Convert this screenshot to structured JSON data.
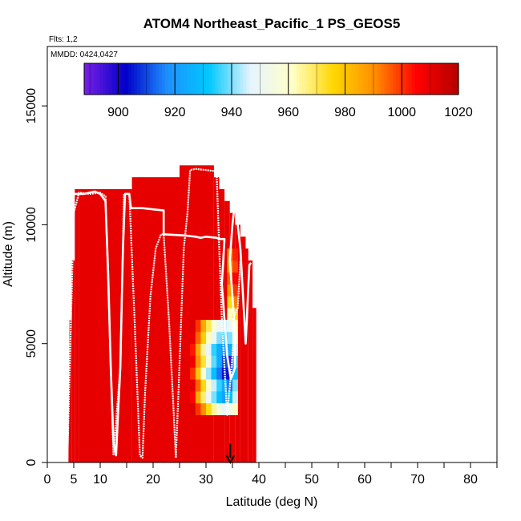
{
  "chart_data": {
    "type": "heatmap",
    "title": "ATOM4 Northeast_Pacific_1 PS_GEOS5",
    "flights_label": "Flts: 1,2",
    "dates_label": "MMDD: 0424,0427",
    "xlabel": "Latitude (deg N)",
    "ylabel": "Altitude (m)",
    "xlim": [
      0,
      85
    ],
    "ylim": [
      0,
      17500
    ],
    "x_ticks": [
      0,
      5,
      10,
      20,
      30,
      40,
      50,
      60,
      70,
      80
    ],
    "y_ticks": [
      0,
      5000,
      10000,
      15000
    ],
    "colorbar": {
      "min": 888,
      "max": 1020,
      "ticks": [
        900,
        920,
        940,
        960,
        980,
        1000,
        1020
      ],
      "colors": [
        "#7a1fe6",
        "#0000c8",
        "#1e90ff",
        "#00c8ff",
        "#e6f4ff",
        "#ffffc8",
        "#ffd700",
        "#ff8c00",
        "#ff0000",
        "#b40000"
      ]
    },
    "background_value": 1010,
    "columns": [
      {
        "x0": 3.8,
        "x1": 4.6,
        "top": 6000
      },
      {
        "x0": 4.6,
        "x1": 5.2,
        "top": 8500
      },
      {
        "x0": 5.2,
        "x1": 6.0,
        "top": 11500
      },
      {
        "x0": 6.0,
        "x1": 16.0,
        "top": 11500
      },
      {
        "x0": 16.0,
        "x1": 25.0,
        "top": 12000
      },
      {
        "x0": 25.0,
        "x1": 31.5,
        "top": 12500
      },
      {
        "x0": 31.5,
        "x1": 32.5,
        "top": 12000
      },
      {
        "x0": 32.5,
        "x1": 33.5,
        "top": 11500
      },
      {
        "x0": 33.5,
        "x1": 34.5,
        "top": 11000
      },
      {
        "x0": 34.5,
        "x1": 35.5,
        "top": 10500
      },
      {
        "x0": 35.5,
        "x1": 36.5,
        "top": 10000
      },
      {
        "x0": 36.5,
        "x1": 37.5,
        "top": 9500
      },
      {
        "x0": 37.5,
        "x1": 38.0,
        "top": 9000
      },
      {
        "x0": 38.0,
        "x1": 38.8,
        "top": 8500
      },
      {
        "x0": 38.8,
        "x1": 39.5,
        "top": 6500
      }
    ],
    "anomaly_cells": [
      {
        "x": 27.5,
        "z": 2250,
        "v": 1012
      },
      {
        "x": 28.5,
        "z": 2250,
        "v": 1000
      },
      {
        "x": 29.5,
        "z": 2250,
        "v": 990
      },
      {
        "x": 30.5,
        "z": 2250,
        "v": 975
      },
      {
        "x": 31.5,
        "z": 2250,
        "v": 965
      },
      {
        "x": 32.5,
        "z": 2250,
        "v": 955
      },
      {
        "x": 33.5,
        "z": 2250,
        "v": 948
      },
      {
        "x": 34.5,
        "z": 2250,
        "v": 952
      },
      {
        "x": 35.5,
        "z": 2250,
        "v": 962
      },
      {
        "x": 27.5,
        "z": 2750,
        "v": 1005
      },
      {
        "x": 28.5,
        "z": 2750,
        "v": 985
      },
      {
        "x": 29.5,
        "z": 2750,
        "v": 968
      },
      {
        "x": 30.5,
        "z": 2750,
        "v": 950
      },
      {
        "x": 31.5,
        "z": 2750,
        "v": 940
      },
      {
        "x": 32.5,
        "z": 2750,
        "v": 930
      },
      {
        "x": 33.5,
        "z": 2750,
        "v": 922
      },
      {
        "x": 34.5,
        "z": 2750,
        "v": 930
      },
      {
        "x": 35.5,
        "z": 2750,
        "v": 945
      },
      {
        "x": 27.5,
        "z": 3250,
        "v": 1010
      },
      {
        "x": 28.5,
        "z": 3250,
        "v": 995
      },
      {
        "x": 29.5,
        "z": 3250,
        "v": 975
      },
      {
        "x": 30.5,
        "z": 3250,
        "v": 960
      },
      {
        "x": 31.5,
        "z": 3250,
        "v": 945
      },
      {
        "x": 32.5,
        "z": 3250,
        "v": 935
      },
      {
        "x": 33.5,
        "z": 3250,
        "v": 925
      },
      {
        "x": 34.5,
        "z": 3250,
        "v": 915
      },
      {
        "x": 35.5,
        "z": 3250,
        "v": 940
      },
      {
        "x": 27.5,
        "z": 3750,
        "v": 1000
      },
      {
        "x": 28.5,
        "z": 3750,
        "v": 980
      },
      {
        "x": 29.5,
        "z": 3750,
        "v": 960
      },
      {
        "x": 30.5,
        "z": 3750,
        "v": 942
      },
      {
        "x": 31.5,
        "z": 3750,
        "v": 930
      },
      {
        "x": 32.5,
        "z": 3750,
        "v": 915
      },
      {
        "x": 33.5,
        "z": 3750,
        "v": 905
      },
      {
        "x": 34.5,
        "z": 3750,
        "v": 900
      },
      {
        "x": 35.5,
        "z": 3750,
        "v": 930
      },
      {
        "x": 27.5,
        "z": 4250,
        "v": 1008
      },
      {
        "x": 28.5,
        "z": 4250,
        "v": 990
      },
      {
        "x": 29.5,
        "z": 4250,
        "v": 972
      },
      {
        "x": 30.5,
        "z": 4250,
        "v": 955
      },
      {
        "x": 31.5,
        "z": 4250,
        "v": 938
      },
      {
        "x": 32.5,
        "z": 4250,
        "v": 925
      },
      {
        "x": 33.5,
        "z": 4250,
        "v": 910
      },
      {
        "x": 34.5,
        "z": 4250,
        "v": 895
      },
      {
        "x": 35.5,
        "z": 4250,
        "v": 935
      },
      {
        "x": 27.5,
        "z": 4750,
        "v": 1003
      },
      {
        "x": 28.5,
        "z": 4750,
        "v": 985
      },
      {
        "x": 29.5,
        "z": 4750,
        "v": 965
      },
      {
        "x": 30.5,
        "z": 4750,
        "v": 948
      },
      {
        "x": 31.5,
        "z": 4750,
        "v": 935
      },
      {
        "x": 32.5,
        "z": 4750,
        "v": 925
      },
      {
        "x": 33.5,
        "z": 4750,
        "v": 918
      },
      {
        "x": 34.5,
        "z": 4750,
        "v": 925
      },
      {
        "x": 35.5,
        "z": 4750,
        "v": 945
      },
      {
        "x": 27.5,
        "z": 5250,
        "v": 1010
      },
      {
        "x": 28.5,
        "z": 5250,
        "v": 995
      },
      {
        "x": 29.5,
        "z": 5250,
        "v": 978
      },
      {
        "x": 30.5,
        "z": 5250,
        "v": 962
      },
      {
        "x": 31.5,
        "z": 5250,
        "v": 950
      },
      {
        "x": 32.5,
        "z": 5250,
        "v": 940
      },
      {
        "x": 33.5,
        "z": 5250,
        "v": 935
      },
      {
        "x": 34.5,
        "z": 5250,
        "v": 940
      },
      {
        "x": 35.5,
        "z": 5250,
        "v": 955
      },
      {
        "x": 27.5,
        "z": 5750,
        "v": 1012
      },
      {
        "x": 28.5,
        "z": 5750,
        "v": 1000
      },
      {
        "x": 29.5,
        "z": 5750,
        "v": 985
      },
      {
        "x": 30.5,
        "z": 5750,
        "v": 970
      },
      {
        "x": 31.5,
        "z": 5750,
        "v": 958
      },
      {
        "x": 32.5,
        "z": 5750,
        "v": 950
      },
      {
        "x": 33.5,
        "z": 5750,
        "v": 945
      },
      {
        "x": 34.5,
        "z": 5750,
        "v": 950
      },
      {
        "x": 35.5,
        "z": 5750,
        "v": 962
      },
      {
        "x": 34.5,
        "z": 6250,
        "v": 962
      },
      {
        "x": 35.5,
        "z": 6250,
        "v": 975
      },
      {
        "x": 34.5,
        "z": 6750,
        "v": 975
      },
      {
        "x": 35.5,
        "z": 6750,
        "v": 992
      },
      {
        "x": 34.5,
        "z": 7250,
        "v": 988
      },
      {
        "x": 35.5,
        "z": 7250,
        "v": 1000
      },
      {
        "x": 34.5,
        "z": 7750,
        "v": 995
      },
      {
        "x": 35.5,
        "z": 7750,
        "v": 1005
      },
      {
        "x": 34.5,
        "z": 8250,
        "v": 985
      },
      {
        "x": 35.5,
        "z": 8250,
        "v": 998
      },
      {
        "x": 34.5,
        "z": 8750,
        "v": 990
      },
      {
        "x": 35.5,
        "z": 8750,
        "v": 1002
      }
    ],
    "flight_track": [
      [
        3.8,
        0
      ],
      [
        3.8,
        200
      ],
      [
        4.0,
        6000
      ],
      [
        4.8,
        10500
      ],
      [
        5.0,
        11300
      ],
      [
        7.0,
        11300
      ],
      [
        9.0,
        11400
      ],
      [
        10.0,
        11300
      ],
      [
        11.0,
        11000
      ],
      [
        11.5,
        8000
      ],
      [
        12.0,
        4000
      ],
      [
        12.5,
        900
      ],
      [
        13.0,
        300
      ],
      [
        13.8,
        4000
      ],
      [
        14.3,
        9000
      ],
      [
        14.7,
        11300
      ],
      [
        15.5,
        11300
      ],
      [
        15.8,
        10700
      ],
      [
        18.0,
        10700
      ],
      [
        20.0,
        10650
      ],
      [
        22.0,
        10600
      ],
      [
        22.0,
        9600
      ],
      [
        26.0,
        9550
      ],
      [
        28.0,
        9500
      ],
      [
        29.0,
        9450
      ],
      [
        30.0,
        9500
      ],
      [
        32.0,
        9450
      ],
      [
        32.5,
        9400
      ],
      [
        33.5,
        9400
      ],
      [
        33.0,
        7500
      ],
      [
        34.0,
        4500
      ],
      [
        34.7,
        3500
      ],
      [
        35.5,
        4000
      ],
      [
        35.5,
        5500
      ],
      [
        35.0,
        7000
      ],
      [
        34.5,
        8500
      ],
      [
        35.0,
        10000
      ],
      [
        35.5,
        11000
      ],
      [
        36.5,
        9000
      ],
      [
        37.0,
        7000
      ],
      [
        37.5,
        5000
      ],
      [
        38.2,
        8300
      ],
      [
        38.5,
        8400
      ]
    ],
    "flight_track_2": [
      [
        3.8,
        200
      ],
      [
        5.0,
        10500
      ],
      [
        6.0,
        11350
      ],
      [
        8.0,
        11300
      ],
      [
        10.0,
        11350
      ],
      [
        11.0,
        11200
      ],
      [
        12.5,
        300
      ],
      [
        13.8,
        4000
      ],
      [
        14.5,
        11300
      ],
      [
        15.5,
        11300
      ],
      [
        16.5,
        6000
      ],
      [
        17.5,
        300
      ],
      [
        18.0,
        200
      ],
      [
        18.5,
        3000
      ],
      [
        19.5,
        7000
      ],
      [
        20.5,
        9000
      ],
      [
        21.5,
        9600
      ],
      [
        22.0,
        9600
      ],
      [
        23.0,
        6000
      ],
      [
        23.8,
        2500
      ],
      [
        24.3,
        200
      ],
      [
        24.8,
        3000
      ],
      [
        25.8,
        9000
      ],
      [
        26.5,
        10500
      ],
      [
        27.0,
        12300
      ],
      [
        28.0,
        12350
      ],
      [
        30.0,
        12300
      ],
      [
        32.0,
        12250
      ],
      [
        32.5,
        9000
      ],
      [
        33.0,
        6000
      ],
      [
        33.5,
        4000
      ],
      [
        34.0,
        2000
      ],
      [
        34.5,
        3200
      ],
      [
        35.0,
        4500
      ],
      [
        35.2,
        5200
      ],
      [
        35.0,
        6000
      ],
      [
        36.0,
        6500
      ],
      [
        36.5,
        8500
      ]
    ],
    "marker": {
      "x": 34.6,
      "from_z": 800,
      "to_z": 0
    }
  }
}
